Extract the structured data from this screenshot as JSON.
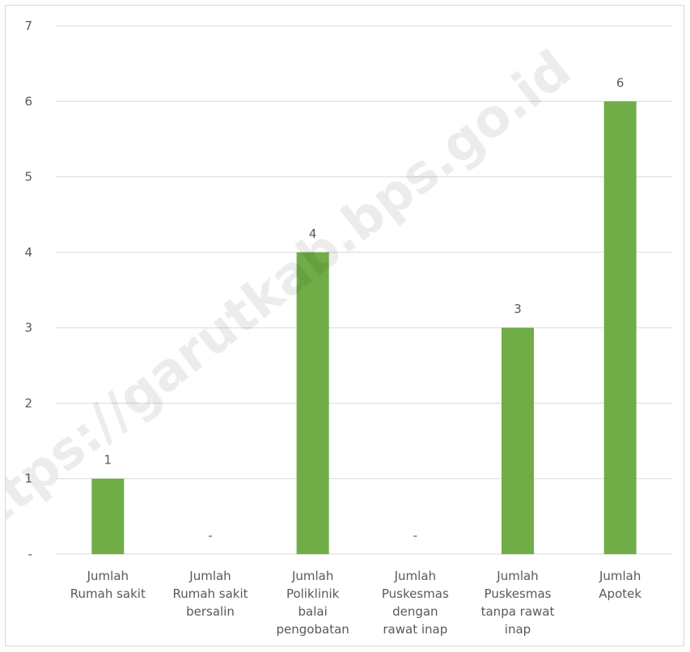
{
  "chart_data": {
    "type": "bar",
    "categories": [
      [
        "Jumlah",
        "Rumah sakit"
      ],
      [
        "Jumlah",
        "Rumah sakit",
        "bersalin"
      ],
      [
        "Jumlah",
        "Poliklinik",
        "balai",
        "pengobatan"
      ],
      [
        "Jumlah",
        "Puskesmas",
        "dengan",
        "rawat inap"
      ],
      [
        "Jumlah",
        "Puskesmas",
        "tanpa rawat",
        "inap"
      ],
      [
        "Jumlah",
        "Apotek"
      ]
    ],
    "values": [
      1,
      0,
      4,
      0,
      3,
      6
    ],
    "data_labels": [
      "1",
      "-",
      "4",
      "-",
      "3",
      "6"
    ],
    "y_ticks": [
      "-",
      "1",
      "2",
      "3",
      "4",
      "5",
      "6",
      "7"
    ],
    "ylim": [
      0,
      7
    ],
    "grid": true,
    "bar_color": "#70ad47",
    "grid_color": "#d9d9d9"
  },
  "watermark": "https://garutkab.bps.go.id"
}
